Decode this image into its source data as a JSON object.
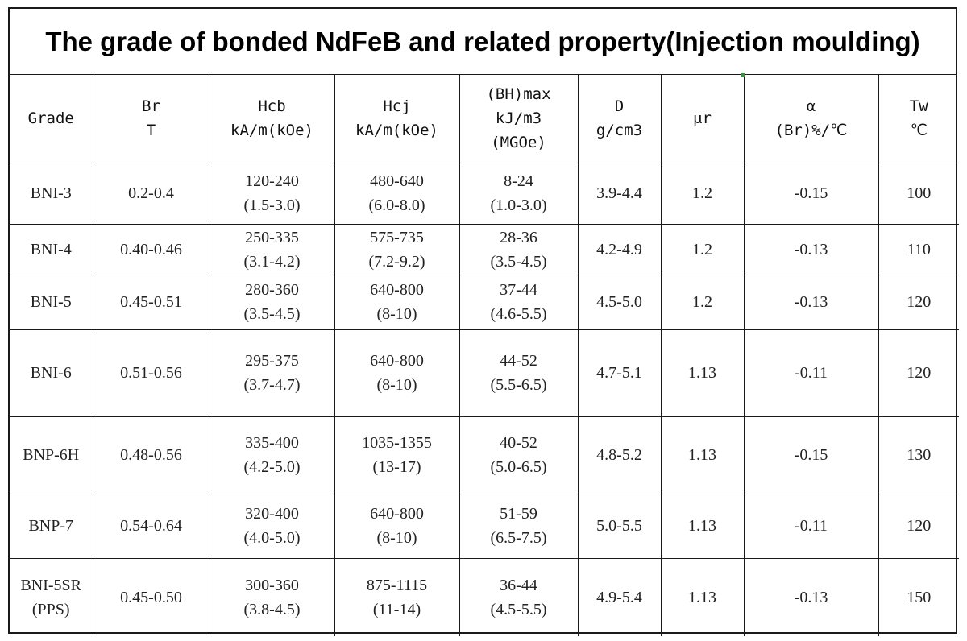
{
  "title": "The grade of bonded NdFeB and related property(Injection moulding)",
  "headers": [
    [
      "Grade"
    ],
    [
      "Br",
      "T"
    ],
    [
      "Hcb",
      "kA/m(kOe)"
    ],
    [
      "Hcj",
      "kA/m(kOe)"
    ],
    [
      "(BH)max",
      "kJ/m3",
      "(MGOe)"
    ],
    [
      "D",
      "g/cm3"
    ],
    [
      "μr"
    ],
    [
      "α",
      "(Br)%/℃"
    ],
    [
      "Tw",
      "℃"
    ]
  ],
  "rows": [
    [
      [
        "BNI-3"
      ],
      [
        "0.2-0.4"
      ],
      [
        "120-240",
        "(1.5-3.0)"
      ],
      [
        "480-640",
        "(6.0-8.0)"
      ],
      [
        "8-24",
        "(1.0-3.0)"
      ],
      [
        "3.9-4.4"
      ],
      [
        "1.2"
      ],
      [
        "-0.15"
      ],
      [
        "100"
      ]
    ],
    [
      [
        "BNI-4"
      ],
      [
        "0.40-0.46"
      ],
      [
        "250-335",
        "(3.1-4.2)"
      ],
      [
        "575-735",
        "(7.2-9.2)"
      ],
      [
        "28-36",
        "(3.5-4.5)"
      ],
      [
        "4.2-4.9"
      ],
      [
        "1.2"
      ],
      [
        "-0.13"
      ],
      [
        "110"
      ]
    ],
    [
      [
        "BNI-5"
      ],
      [
        "0.45-0.51"
      ],
      [
        "280-360",
        "(3.5-4.5)"
      ],
      [
        "640-800",
        "(8-10)"
      ],
      [
        "37-44",
        "(4.6-5.5)"
      ],
      [
        "4.5-5.0"
      ],
      [
        "1.2"
      ],
      [
        "-0.13"
      ],
      [
        "120"
      ]
    ],
    [
      [
        "BNI-6"
      ],
      [
        "0.51-0.56"
      ],
      [
        "295-375",
        "(3.7-4.7)"
      ],
      [
        "640-800",
        "(8-10)"
      ],
      [
        "44-52",
        "(5.5-6.5)"
      ],
      [
        "4.7-5.1"
      ],
      [
        "1.13"
      ],
      [
        "-0.11"
      ],
      [
        "120"
      ]
    ],
    [
      [
        "BNP-6H"
      ],
      [
        "0.48-0.56"
      ],
      [
        "335-400",
        "(4.2-5.0)"
      ],
      [
        "1035-1355",
        "(13-17)"
      ],
      [
        "40-52",
        "(5.0-6.5)"
      ],
      [
        "4.8-5.2"
      ],
      [
        "1.13"
      ],
      [
        "-0.15"
      ],
      [
        "130"
      ]
    ],
    [
      [
        "BNP-7"
      ],
      [
        "0.54-0.64"
      ],
      [
        "320-400",
        "(4.0-5.0)"
      ],
      [
        "640-800",
        "(8-10)"
      ],
      [
        "51-59",
        "(6.5-7.5)"
      ],
      [
        "5.0-5.5"
      ],
      [
        "1.13"
      ],
      [
        "-0.11"
      ],
      [
        "120"
      ]
    ],
    [
      [
        "BNI-5SR",
        "(PPS)"
      ],
      [
        "0.45-0.50"
      ],
      [
        "300-360",
        "(3.8-4.5)"
      ],
      [
        "875-1115",
        "(11-14)"
      ],
      [
        "36-44",
        "(4.5-5.5)"
      ],
      [
        "4.9-5.4"
      ],
      [
        "1.13"
      ],
      [
        "-0.13"
      ],
      [
        "150"
      ]
    ]
  ],
  "colors": {
    "border": "#1a1a1a",
    "text": "#222222",
    "title": "#000000",
    "marker": "#2a9d2a"
  }
}
